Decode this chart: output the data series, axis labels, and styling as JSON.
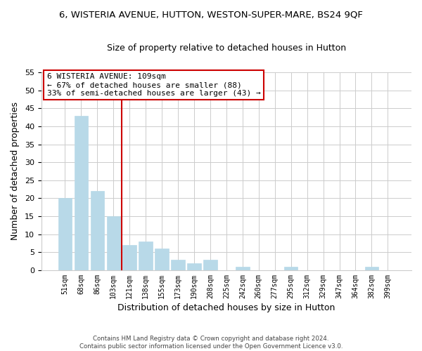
{
  "title": "6, WISTERIA AVENUE, HUTTON, WESTON-SUPER-MARE, BS24 9QF",
  "subtitle": "Size of property relative to detached houses in Hutton",
  "xlabel": "Distribution of detached houses by size in Hutton",
  "ylabel": "Number of detached properties",
  "bar_labels": [
    "51sqm",
    "68sqm",
    "86sqm",
    "103sqm",
    "121sqm",
    "138sqm",
    "155sqm",
    "173sqm",
    "190sqm",
    "208sqm",
    "225sqm",
    "242sqm",
    "260sqm",
    "277sqm",
    "295sqm",
    "312sqm",
    "329sqm",
    "347sqm",
    "364sqm",
    "382sqm",
    "399sqm"
  ],
  "bar_values": [
    20,
    43,
    22,
    15,
    7,
    8,
    6,
    3,
    2,
    3,
    0,
    1,
    0,
    0,
    1,
    0,
    0,
    0,
    0,
    1,
    0
  ],
  "bar_color": "#b8d9e8",
  "bar_edge_color": "#b8d9e8",
  "vline_x": 3.5,
  "vline_color": "#cc0000",
  "annotation_text": "6 WISTERIA AVENUE: 109sqm\n← 67% of detached houses are smaller (88)\n33% of semi-detached houses are larger (43) →",
  "annotation_box_color": "white",
  "annotation_box_edge_color": "#cc0000",
  "ylim": [
    0,
    55
  ],
  "yticks": [
    0,
    5,
    10,
    15,
    20,
    25,
    30,
    35,
    40,
    45,
    50,
    55
  ],
  "footer": "Contains HM Land Registry data © Crown copyright and database right 2024.\nContains public sector information licensed under the Open Government Licence v3.0.",
  "background_color": "#ffffff",
  "grid_color": "#cccccc"
}
